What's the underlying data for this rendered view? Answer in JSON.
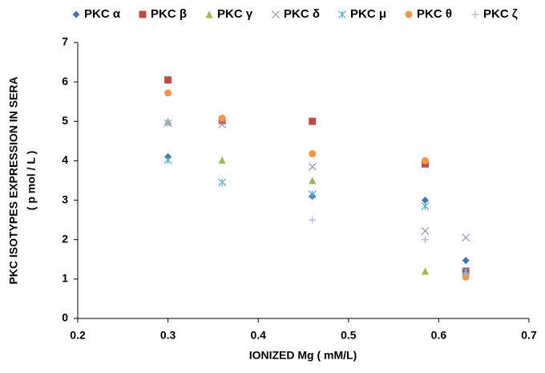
{
  "chart_data": {
    "type": "scatter",
    "xlabel": "IONIZED Mg ( mM/L)",
    "ylabel": [
      "PKC  ISOTYPES  EXPRESSION  IN  SERA",
      "( p mol / L )"
    ],
    "x": [
      0.3,
      0.36,
      0.46,
      0.585,
      0.63
    ],
    "xlim": [
      0.2,
      0.7
    ],
    "xticks": [
      0.2,
      0.3,
      0.4,
      0.5,
      0.6,
      0.7
    ],
    "ylim": [
      0,
      7
    ],
    "yticks": [
      0,
      1,
      2,
      3,
      4,
      5,
      6,
      7
    ],
    "legend": "top",
    "series": [
      {
        "name": "PKC α",
        "color": "#4a70b8",
        "marker": "diamond",
        "values": [
          4.1,
          5.0,
          3.1,
          3.0,
          1.47
        ]
      },
      {
        "name": "PKC β",
        "color": "#be4b48",
        "marker": "square",
        "values": [
          6.05,
          5.02,
          5.0,
          3.92,
          1.2
        ]
      },
      {
        "name": "PKC γ",
        "color": "#98b954",
        "marker": "triangle",
        "values": [
          5.0,
          4.02,
          3.5,
          1.2,
          1.1
        ]
      },
      {
        "name": "PKC δ",
        "color": "#9e8fc4",
        "marker": "x",
        "values": [
          4.95,
          4.92,
          3.85,
          2.22,
          2.05
        ]
      },
      {
        "name": "PKC μ",
        "color": "#4bacc6",
        "marker": "star",
        "values": [
          4.02,
          3.45,
          3.15,
          2.85,
          1.2
        ]
      },
      {
        "name": "PKC θ",
        "color": "#f79646",
        "marker": "circle",
        "values": [
          5.72,
          5.08,
          4.18,
          4.0,
          1.05
        ]
      },
      {
        "name": "PKC ζ",
        "color": "#a3b4dc",
        "marker": "plus",
        "values": [
          4.95,
          3.42,
          2.5,
          2.0,
          1.15
        ]
      }
    ]
  }
}
